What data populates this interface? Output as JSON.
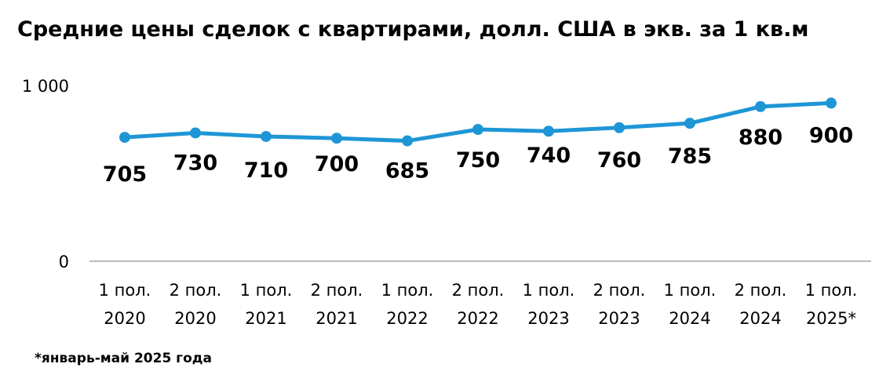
{
  "chart_data": {
    "type": "line",
    "title": "Средние цены сделок с квартирами, долл. США в экв. за 1 кв.м",
    "categories": [
      [
        "1 пол.",
        "2020"
      ],
      [
        "2 пол.",
        "2020"
      ],
      [
        "1 пол.",
        "2021"
      ],
      [
        "2 пол.",
        "2021"
      ],
      [
        "1 пол.",
        "2022"
      ],
      [
        "2 пол.",
        "2022"
      ],
      [
        "1 пол.",
        "2023"
      ],
      [
        "2 пол.",
        "2023"
      ],
      [
        "1 пол.",
        "2024"
      ],
      [
        "2 пол.",
        "2024"
      ],
      [
        "1 пол.",
        "2025*"
      ]
    ],
    "values": [
      705,
      730,
      710,
      700,
      685,
      750,
      740,
      760,
      785,
      880,
      900
    ],
    "data_labels": [
      "705",
      "730",
      "710",
      "700",
      "685",
      "750",
      "740",
      "760",
      "785",
      "880",
      "900"
    ],
    "ylim": [
      0,
      1000
    ],
    "yticks": [
      0,
      1000
    ],
    "ytick_labels": [
      "0",
      "1 000"
    ],
    "line_color": "#1e96d6",
    "grid": false,
    "footnote": "*январь-май 2025 года"
  }
}
